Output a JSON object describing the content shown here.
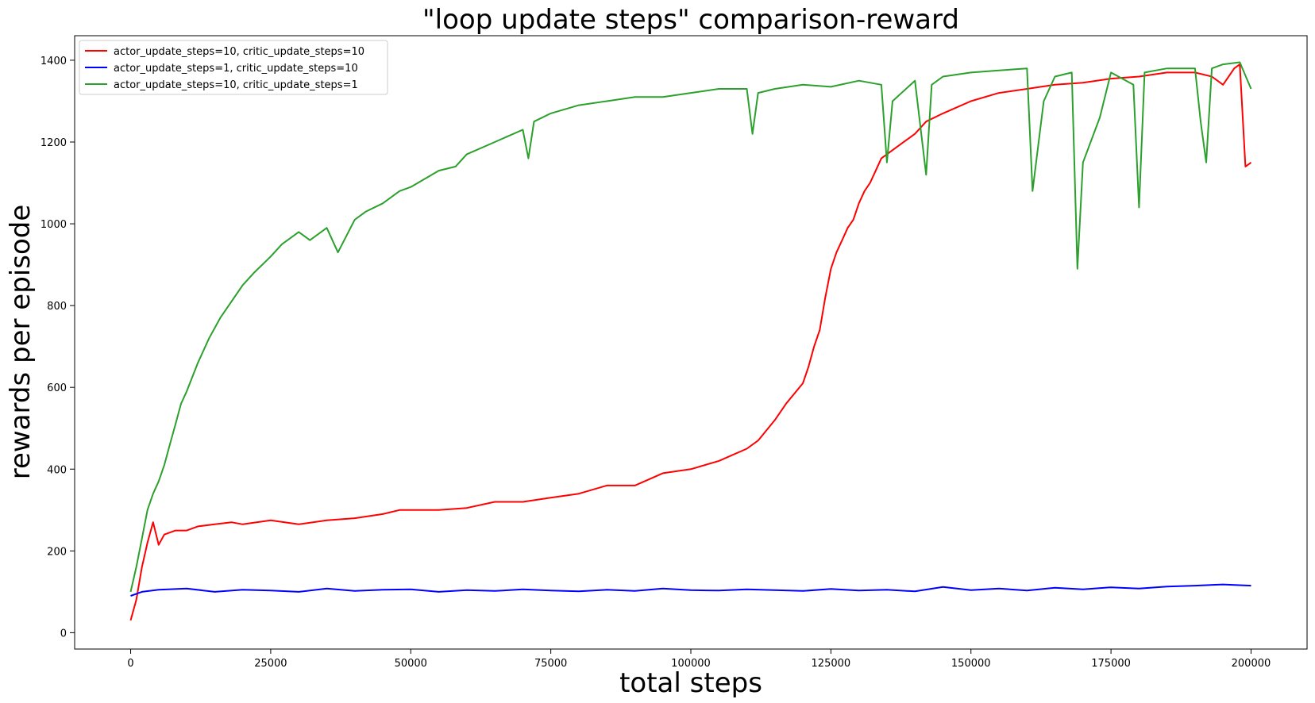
{
  "chart_data": {
    "type": "line",
    "title": "\"loop update steps\" comparison-reward",
    "xlabel": "total steps",
    "ylabel": "rewards per episode",
    "xlim": [
      -10000,
      210000
    ],
    "ylim": [
      -40,
      1460
    ],
    "x_ticks": [
      0,
      25000,
      50000,
      75000,
      100000,
      125000,
      150000,
      175000,
      200000
    ],
    "y_ticks": [
      0,
      200,
      400,
      600,
      800,
      1000,
      1200,
      1400
    ],
    "grid": false,
    "legend_position": "top-left",
    "series": [
      {
        "name": "actor_update_steps=10, critic_update_steps=10",
        "color": "#ff0000",
        "x": [
          0,
          1000,
          2000,
          3000,
          4000,
          5000,
          6000,
          8000,
          10000,
          12000,
          15000,
          18000,
          20000,
          25000,
          30000,
          35000,
          40000,
          45000,
          48000,
          50000,
          55000,
          60000,
          65000,
          70000,
          75000,
          80000,
          85000,
          90000,
          95000,
          100000,
          105000,
          110000,
          112000,
          115000,
          117000,
          120000,
          121000,
          122000,
          123000,
          124000,
          125000,
          126000,
          127000,
          128000,
          129000,
          130000,
          131000,
          132000,
          133000,
          134000,
          135000,
          137000,
          140000,
          142000,
          145000,
          150000,
          155000,
          160000,
          165000,
          170000,
          175000,
          180000,
          185000,
          190000,
          193000,
          195000,
          197000,
          198000,
          199000,
          200000
        ],
        "y": [
          30,
          80,
          160,
          220,
          270,
          215,
          240,
          250,
          250,
          260,
          265,
          270,
          265,
          275,
          265,
          275,
          280,
          290,
          300,
          300,
          300,
          305,
          320,
          320,
          330,
          340,
          360,
          360,
          390,
          400,
          420,
          450,
          470,
          520,
          560,
          610,
          650,
          700,
          740,
          820,
          890,
          930,
          960,
          990,
          1010,
          1050,
          1080,
          1100,
          1130,
          1160,
          1170,
          1190,
          1220,
          1250,
          1270,
          1300,
          1320,
          1330,
          1340,
          1345,
          1355,
          1360,
          1370,
          1370,
          1360,
          1340,
          1380,
          1390,
          1140,
          1150
        ]
      },
      {
        "name": "actor_update_steps=1, critic_update_steps=10",
        "color": "#0000ff",
        "x": [
          0,
          2000,
          5000,
          10000,
          15000,
          20000,
          25000,
          30000,
          35000,
          40000,
          45000,
          50000,
          55000,
          60000,
          65000,
          70000,
          75000,
          80000,
          85000,
          90000,
          95000,
          100000,
          105000,
          110000,
          115000,
          120000,
          125000,
          130000,
          135000,
          140000,
          145000,
          150000,
          155000,
          160000,
          165000,
          170000,
          175000,
          180000,
          185000,
          190000,
          195000,
          200000
        ],
        "y": [
          90,
          100,
          105,
          108,
          100,
          105,
          103,
          100,
          108,
          102,
          105,
          106,
          100,
          104,
          102,
          106,
          103,
          101,
          105,
          102,
          108,
          104,
          103,
          106,
          104,
          102,
          107,
          103,
          105,
          101,
          112,
          104,
          108,
          103,
          110,
          106,
          111,
          108,
          113,
          115,
          118,
          115
        ]
      },
      {
        "name": "actor_update_steps=10, critic_update_steps=1",
        "color": "#2ca02c",
        "x": [
          0,
          1000,
          2000,
          3000,
          4000,
          5000,
          6000,
          7000,
          8000,
          9000,
          10000,
          12000,
          14000,
          16000,
          18000,
          20000,
          22000,
          25000,
          27000,
          30000,
          32000,
          35000,
          37000,
          40000,
          42000,
          45000,
          48000,
          50000,
          55000,
          58000,
          60000,
          65000,
          70000,
          71000,
          72000,
          75000,
          80000,
          85000,
          90000,
          95000,
          100000,
          105000,
          110000,
          111000,
          112000,
          115000,
          120000,
          125000,
          130000,
          134000,
          135000,
          136000,
          140000,
          142000,
          143000,
          145000,
          150000,
          155000,
          160000,
          161000,
          163000,
          165000,
          168000,
          169000,
          170000,
          173000,
          175000,
          179000,
          180000,
          181000,
          185000,
          190000,
          191000,
          192000,
          193000,
          195000,
          198000,
          200000
        ],
        "y": [
          100,
          160,
          230,
          300,
          340,
          370,
          410,
          460,
          510,
          560,
          590,
          660,
          720,
          770,
          810,
          850,
          880,
          920,
          950,
          980,
          960,
          990,
          930,
          1010,
          1030,
          1050,
          1080,
          1090,
          1130,
          1140,
          1170,
          1200,
          1230,
          1160,
          1250,
          1270,
          1290,
          1300,
          1310,
          1310,
          1320,
          1330,
          1330,
          1220,
          1320,
          1330,
          1340,
          1335,
          1350,
          1340,
          1150,
          1300,
          1350,
          1120,
          1340,
          1360,
          1370,
          1375,
          1380,
          1080,
          1300,
          1360,
          1370,
          890,
          1150,
          1260,
          1370,
          1340,
          1040,
          1370,
          1380,
          1380,
          1250,
          1150,
          1380,
          1390,
          1395,
          1330
        ]
      }
    ]
  }
}
